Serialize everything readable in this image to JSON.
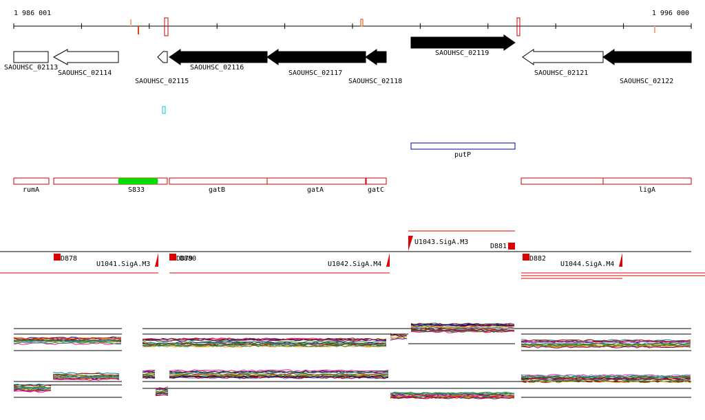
{
  "ruler": {
    "start_label": "1 986 001",
    "end_label": "1 996 000"
  },
  "genes": [
    {
      "id": "SAOUHSC_02113",
      "strand": "+",
      "fill": "white"
    },
    {
      "id": "SAOUHSC_02114",
      "strand": "-",
      "fill": "white"
    },
    {
      "id": "SAOUHSC_02115",
      "strand": "-",
      "fill": "white"
    },
    {
      "id": "SAOUHSC_02116",
      "strand": "-",
      "fill": "black"
    },
    {
      "id": "SAOUHSC_02117",
      "strand": "-",
      "fill": "black"
    },
    {
      "id": "SAOUHSC_02118",
      "strand": "-",
      "fill": "black"
    },
    {
      "id": "SAOUHSC_02119",
      "strand": "+",
      "fill": "black"
    },
    {
      "id": "SAOUHSC_02121",
      "strand": "-",
      "fill": "white"
    },
    {
      "id": "SAOUHSC_02122",
      "strand": "-",
      "fill": "black"
    }
  ],
  "named_genes": {
    "putP": "putP"
  },
  "operons": [
    {
      "label": "rumA"
    },
    {
      "label": "S833"
    },
    {
      "label": "gatB"
    },
    {
      "label": "gatA"
    },
    {
      "label": "gatC"
    },
    {
      "label": "ligA"
    }
  ],
  "transcripts": [
    {
      "label": "D878"
    },
    {
      "label": "U1041.SigA.M3"
    },
    {
      "label": "D879"
    },
    {
      "label": "D880"
    },
    {
      "label": "U1042.SigA.M4"
    },
    {
      "label": "U1043.SigA.M3"
    },
    {
      "label": "D881"
    },
    {
      "label": "D882"
    },
    {
      "label": "U1044.SigA.M4"
    }
  ],
  "colors": {
    "gene_outline": "#000000",
    "operon_outline": "#cc0000",
    "sigma_highlight": "#00dd00",
    "putP_outline": "#000099",
    "transcript_red": "#dd0000",
    "cyan_marker": "#00cccc"
  }
}
